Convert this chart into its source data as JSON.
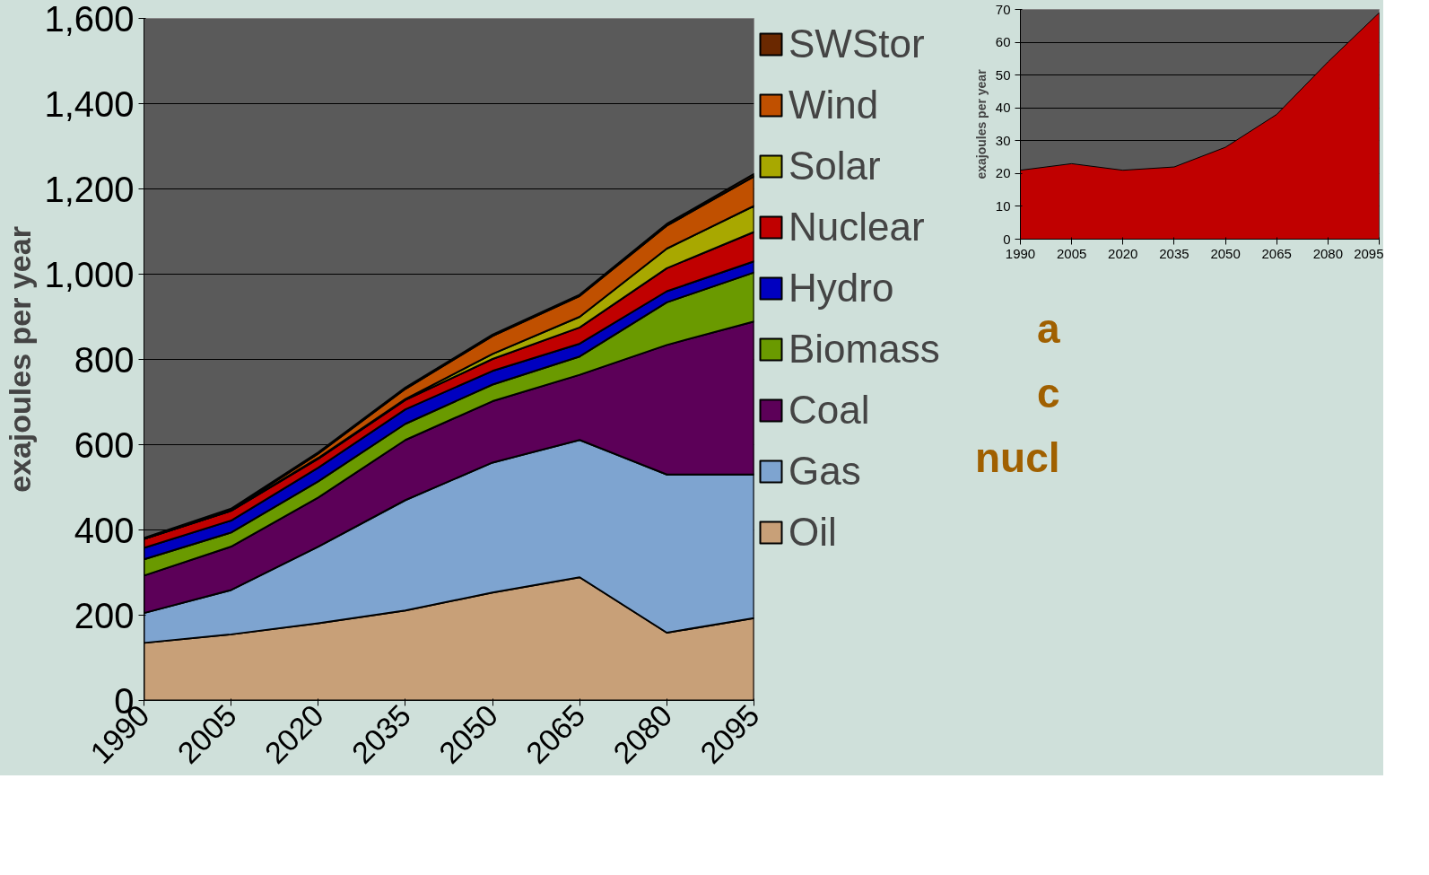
{
  "chart_data": [
    {
      "type": "area",
      "stacked": true,
      "ylabel": "exajoules per year",
      "categories": [
        "1990",
        "2005",
        "2020",
        "2035",
        "2050",
        "2065",
        "2080",
        "2095"
      ],
      "ylim": [
        0,
        1600
      ],
      "yticks": [
        0,
        {
          "value": 200,
          "label": "200"
        },
        {
          "value": 400,
          "label": "400"
        },
        {
          "value": 600,
          "label": "600"
        },
        {
          "value": 800,
          "label": "800"
        },
        {
          "value": 1000,
          "label": "1,000"
        },
        {
          "value": 1200,
          "label": "1,200"
        },
        {
          "value": 1400,
          "label": "1,400"
        },
        {
          "value": 1600,
          "label": "1,600"
        }
      ],
      "grid": "y",
      "legend": "right",
      "series": [
        {
          "name": "Oil",
          "color": "#c8a078",
          "values": [
            135,
            155,
            181,
            211,
            253,
            289,
            159,
            193
          ]
        },
        {
          "name": "Gas",
          "color": "#7ea4d0",
          "values": [
            70,
            104,
            180,
            259,
            305,
            322,
            371,
            337
          ]
        },
        {
          "name": "Coal",
          "color": "#5c0058",
          "values": [
            88,
            102,
            115,
            141,
            144,
            153,
            304,
            359
          ]
        },
        {
          "name": "Biomass",
          "color": "#6a9a00",
          "values": [
            38,
            33,
            38,
            38,
            39,
            43,
            100,
            115
          ]
        },
        {
          "name": "Hydro",
          "color": "#0000c0",
          "values": [
            27,
            28,
            32,
            34,
            32,
            30,
            26,
            26
          ]
        },
        {
          "name": "Nuclear",
          "color": "#c00000",
          "values": [
            21,
            23,
            21,
            22,
            28,
            38,
            54,
            69
          ]
        },
        {
          "name": "Solar",
          "color": "#a8a800",
          "values": [
            0,
            0,
            2,
            2,
            12,
            25,
            46,
            61
          ]
        },
        {
          "name": "Wind",
          "color": "#c05000",
          "values": [
            0,
            2,
            10,
            24,
            42,
            49,
            54,
            69
          ]
        },
        {
          "name": "SWStor",
          "color": "#6a2800",
          "values": [
            2,
            3,
            3,
            3,
            3,
            3,
            4,
            6
          ]
        }
      ],
      "annotations": [
        "a",
        "c",
        "nucl"
      ]
    },
    {
      "type": "area",
      "ylabel": "exajoules per year",
      "categories": [
        "1990",
        "2005",
        "2020",
        "2035",
        "2050",
        "2065",
        "2080",
        "2095"
      ],
      "ylim": [
        0,
        70
      ],
      "yticks": [
        0,
        10,
        20,
        30,
        40,
        50,
        60,
        70
      ],
      "grid": "y",
      "series": [
        {
          "color": "#c00000",
          "values": [
            21,
            23,
            21,
            22,
            28,
            38,
            54,
            69
          ]
        }
      ]
    }
  ]
}
